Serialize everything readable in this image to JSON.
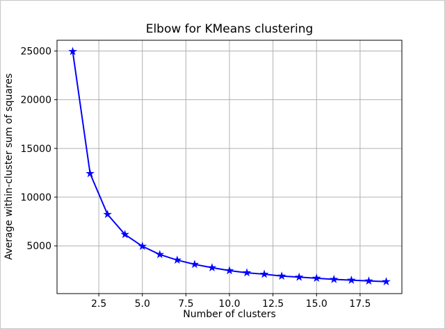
{
  "window": {
    "background": "#ffffff",
    "border_color": "#c6c6c6"
  },
  "chart": {
    "title": "Elbow for KMeans clustering",
    "xlabel": "Number of clusters",
    "ylabel": "Average within-cluster sum of squares"
  },
  "chart_data": {
    "type": "line",
    "title": "Elbow for KMeans clustering",
    "xlabel": "Number of clusters",
    "ylabel": "Average within-cluster sum of squares",
    "x": [
      1,
      2,
      3,
      4,
      5,
      6,
      7,
      8,
      9,
      10,
      11,
      12,
      13,
      14,
      15,
      16,
      17,
      18,
      19
    ],
    "y": [
      24950,
      12420,
      8230,
      6170,
      4960,
      4110,
      3540,
      3100,
      2760,
      2460,
      2240,
      2090,
      1900,
      1790,
      1680,
      1560,
      1480,
      1400,
      1330
    ],
    "marker": "star",
    "marker_size": 5,
    "line_color": "#0000ff",
    "line_width": 2,
    "grid": true,
    "grid_color": "#b0b0b0",
    "axis_color": "#000000",
    "xlim": [
      0.1,
      19.9
    ],
    "ylim": [
      100,
      26100
    ],
    "xticks": [
      2.5,
      5.0,
      7.5,
      10.0,
      12.5,
      15.0,
      17.5
    ],
    "xtick_labels": [
      "2.5",
      "5.0",
      "7.5",
      "10.0",
      "12.5",
      "15.0",
      "17.5"
    ],
    "yticks": [
      5000,
      10000,
      15000,
      20000,
      25000
    ],
    "ytick_labels": [
      "5000",
      "10000",
      "15000",
      "20000",
      "25000"
    ],
    "legend_position": "none"
  }
}
